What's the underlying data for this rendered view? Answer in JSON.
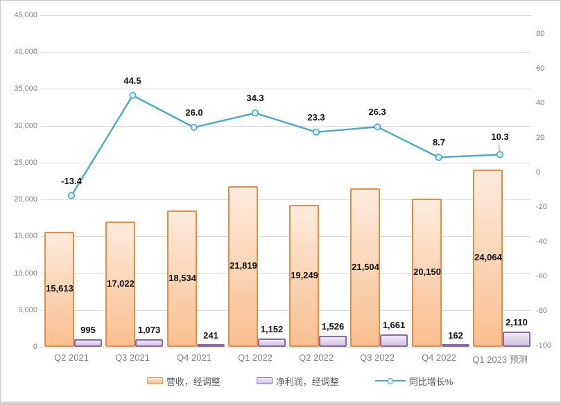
{
  "chart_data": {
    "type": "combo",
    "categories": [
      "Q2 2021",
      "Q3 2021",
      "Q4 2021",
      "Q1 2022",
      "Q2 2022",
      "Q3 2022",
      "Q4 2022",
      "Q1 2023 预测"
    ],
    "series": [
      {
        "name": "营收，经调整",
        "type": "bar",
        "axis": "left",
        "values": [
          15613,
          17022,
          18534,
          21819,
          19249,
          21504,
          20150,
          24064
        ],
        "labels": [
          "15,613",
          "17,022",
          "18,534",
          "21,819",
          "19,249",
          "21,504",
          "20,150",
          "24,064"
        ],
        "fill_top": "#FDEBDD",
        "fill_bottom": "#F9BF90",
        "border": "#EC8C3D"
      },
      {
        "name": "净利润，经调整",
        "type": "bar",
        "axis": "left",
        "values": [
          995,
          1073,
          241,
          1152,
          1526,
          1661,
          162,
          2110
        ],
        "labels": [
          "995",
          "1,073",
          "241",
          "1,152",
          "1,526",
          "1,661",
          "162",
          "2,110"
        ],
        "fill_top": "#EFEAF6",
        "fill_bottom": "#CFC2E1",
        "border": "#8868A9"
      },
      {
        "name": "同比增长%",
        "type": "line",
        "axis": "right",
        "values": [
          -13.4,
          44.5,
          26.0,
          34.3,
          23.3,
          26.3,
          8.7,
          10.3
        ],
        "labels": [
          "-13.4",
          "44.5",
          "26.0",
          "34.3",
          "23.3",
          "26.3",
          "8.7",
          "10.3"
        ],
        "color": "#45AAC7",
        "marker_fill": "#D7ECF5",
        "leader_line_color": "#9E9E9E"
      }
    ],
    "left_axis": {
      "min": 0,
      "max": 45000,
      "step": 5000,
      "tick_labels": [
        "45,000",
        "40,000",
        "35,000",
        "30,000",
        "25,000",
        "20,000",
        "15,000",
        "10,000",
        "5,000",
        "0"
      ]
    },
    "right_axis": {
      "values": [
        80,
        60,
        40,
        20,
        0,
        -20,
        -40,
        -60,
        -80,
        -100
      ],
      "tick_labels": [
        "80",
        "60",
        "40",
        "20",
        "0",
        "-20",
        "-40",
        "-60",
        "-80",
        "-100"
      ]
    },
    "grid": true,
    "gridline_color": "#DADADA",
    "legend_position": "bottom"
  },
  "legend": {
    "items": [
      {
        "label": "营收，经调整",
        "swatch": "bar-orange"
      },
      {
        "label": "净利润，经调整",
        "swatch": "bar-purple"
      },
      {
        "label": "同比增长%",
        "swatch": "line-teal"
      }
    ]
  },
  "colors": {
    "background": "#FFFFFF",
    "frame_border": "#C9C9C9",
    "bottom_strip": "#D4D4D4",
    "axis_text": "#7F7F7F",
    "legend_text": "#595959",
    "data_label_text": "#111111"
  }
}
